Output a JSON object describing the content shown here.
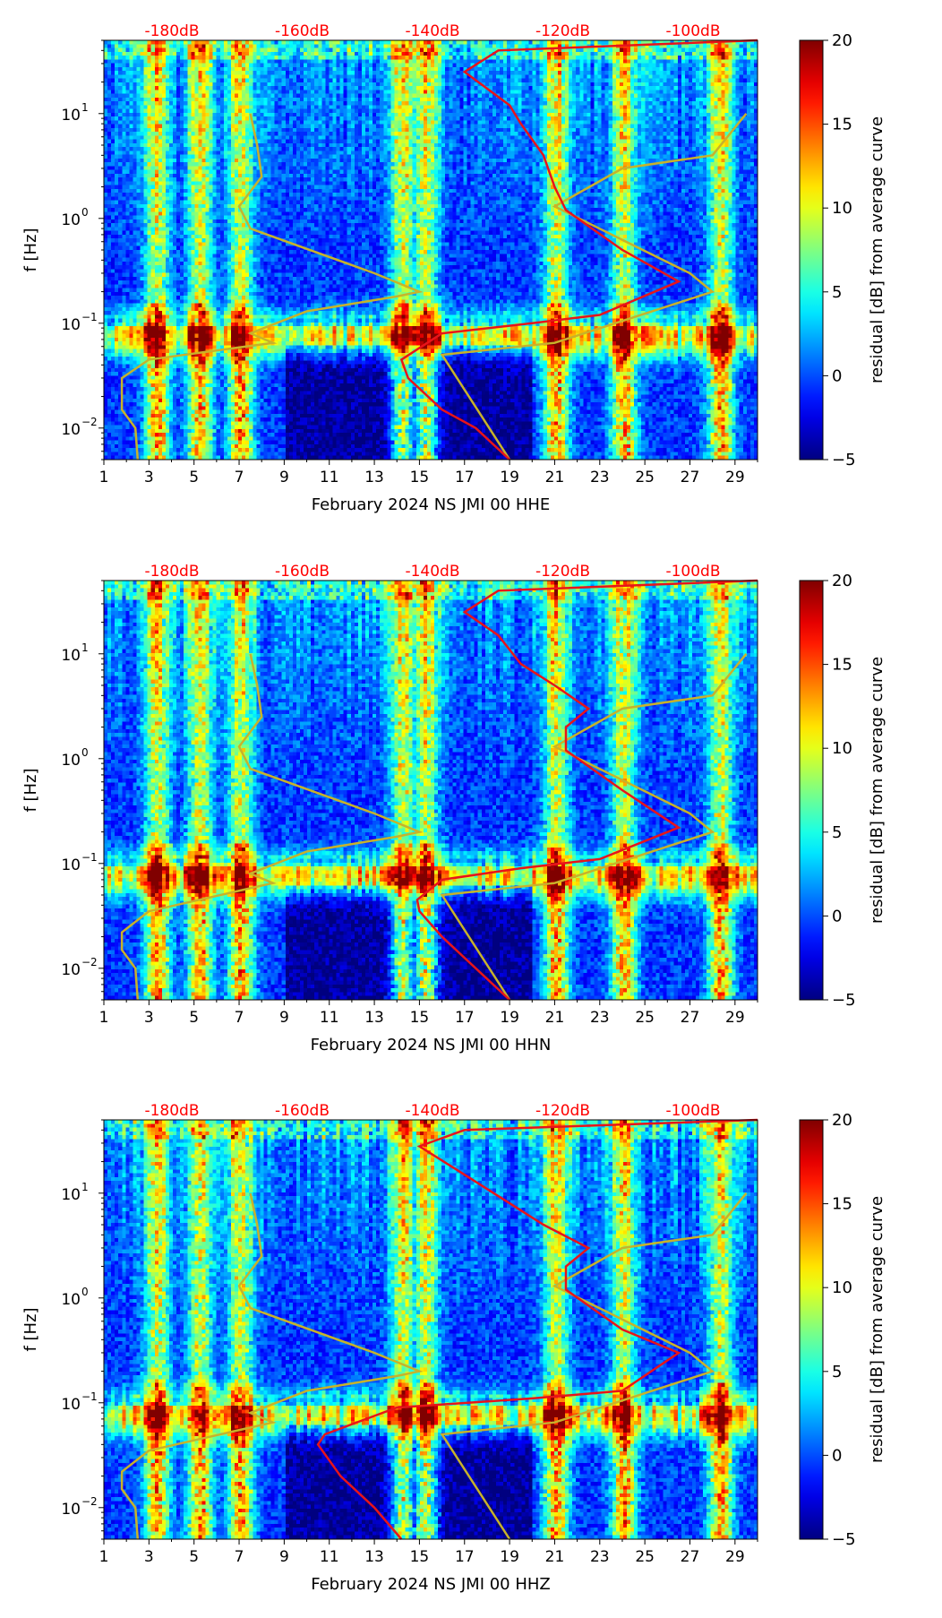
{
  "chart_data": [
    {
      "type": "heatmap",
      "title": "",
      "xlabel": "February 2024 NS JMI 00 HHE",
      "ylabel": "f [Hz]",
      "x_ticks": [
        "1",
        "3",
        "5",
        "7",
        "9",
        "11",
        "13",
        "15",
        "17",
        "19",
        "21",
        "23",
        "25",
        "27",
        "29"
      ],
      "x_range": [
        1,
        30
      ],
      "y_ticks": [
        {
          "exp": "1",
          "base": "10"
        },
        {
          "exp": "0",
          "base": "10"
        },
        {
          "exp": "−1",
          "base": "10"
        },
        {
          "exp": "−2",
          "base": "10"
        }
      ],
      "y_range_hz": [
        0.005,
        50
      ],
      "db_top_labels": [
        "-180dB",
        "-160dB",
        "-140dB",
        "-120dB",
        "-100dB"
      ],
      "colorbar": {
        "label": "residual [dB] from average curve",
        "ticks": [
          "20",
          "15",
          "10",
          "5",
          "0",
          "−5"
        ],
        "range": [
          -5,
          20
        ],
        "colormap": "jet"
      },
      "red_curve": [
        [
          19,
          0.005
        ],
        [
          17.5,
          0.01
        ],
        [
          16,
          0.015
        ],
        [
          14.5,
          0.03
        ],
        [
          14.2,
          0.045
        ],
        [
          16,
          0.08
        ],
        [
          20,
          0.1
        ],
        [
          23,
          0.12
        ],
        [
          26.5,
          0.25
        ],
        [
          24,
          0.5
        ],
        [
          21.5,
          1.2
        ],
        [
          21,
          2
        ],
        [
          20.5,
          4
        ],
        [
          19.5,
          8
        ],
        [
          19,
          12
        ],
        [
          17,
          25
        ],
        [
          18.5,
          40
        ],
        [
          30,
          50
        ]
      ],
      "gold_curve": [
        [
          2.5,
          0.005
        ],
        [
          2.4,
          0.01
        ],
        [
          1.8,
          0.015
        ],
        [
          1.8,
          0.03
        ],
        [
          3,
          0.045
        ],
        [
          8.5,
          0.065
        ],
        [
          7.5,
          0.08
        ],
        [
          10,
          0.13
        ],
        [
          14,
          0.18
        ],
        [
          15,
          0.2
        ],
        [
          13,
          0.3
        ],
        [
          7.5,
          0.8
        ],
        [
          7,
          1.3
        ],
        [
          8,
          2.5
        ],
        [
          7.8,
          5
        ],
        [
          7.5,
          10
        ]
      ],
      "gold_curve_right": [
        [
          19,
          0.005
        ],
        [
          16,
          0.05
        ],
        [
          21,
          0.065
        ],
        [
          28,
          0.2
        ],
        [
          27,
          0.3
        ],
        [
          21,
          1.3
        ],
        [
          24,
          3
        ],
        [
          28,
          4
        ],
        [
          29.5,
          10
        ]
      ]
    },
    {
      "type": "heatmap",
      "title": "",
      "xlabel": "February 2024 NS JMI 00 HHN",
      "ylabel": "f [Hz]",
      "x_ticks": [
        "1",
        "3",
        "5",
        "7",
        "9",
        "11",
        "13",
        "15",
        "17",
        "19",
        "21",
        "23",
        "25",
        "27",
        "29"
      ],
      "x_range": [
        1,
        30
      ],
      "y_ticks": [
        {
          "exp": "1",
          "base": "10"
        },
        {
          "exp": "0",
          "base": "10"
        },
        {
          "exp": "−1",
          "base": "10"
        },
        {
          "exp": "−2",
          "base": "10"
        }
      ],
      "y_range_hz": [
        0.005,
        50
      ],
      "db_top_labels": [
        "-180dB",
        "-160dB",
        "-140dB",
        "-120dB",
        "-100dB"
      ],
      "colorbar": {
        "label": "residual [dB] from average curve",
        "ticks": [
          "20",
          "15",
          "10",
          "5",
          "0",
          "−5"
        ],
        "range": [
          -5,
          20
        ],
        "colormap": "jet"
      },
      "red_curve": [
        [
          19,
          0.005
        ],
        [
          17.5,
          0.01
        ],
        [
          16,
          0.02
        ],
        [
          15,
          0.035
        ],
        [
          14.9,
          0.045
        ],
        [
          16,
          0.07
        ],
        [
          19.5,
          0.09
        ],
        [
          23,
          0.11
        ],
        [
          26.5,
          0.22
        ],
        [
          24,
          0.5
        ],
        [
          21.5,
          1.2
        ],
        [
          21.5,
          2
        ],
        [
          22.5,
          3
        ],
        [
          21,
          5
        ],
        [
          19.5,
          8
        ],
        [
          18.5,
          15
        ],
        [
          17,
          25
        ],
        [
          18.5,
          40
        ],
        [
          30,
          50
        ]
      ],
      "gold_curve": [
        [
          2.5,
          0.005
        ],
        [
          2.4,
          0.01
        ],
        [
          1.8,
          0.015
        ],
        [
          1.8,
          0.022
        ],
        [
          3,
          0.035
        ],
        [
          8.5,
          0.065
        ],
        [
          7.5,
          0.08
        ],
        [
          10,
          0.13
        ],
        [
          14,
          0.18
        ],
        [
          15,
          0.2
        ],
        [
          13,
          0.3
        ],
        [
          7.5,
          0.8
        ],
        [
          7,
          1.3
        ],
        [
          8,
          2.5
        ],
        [
          7.8,
          5
        ],
        [
          7.5,
          10
        ]
      ],
      "gold_curve_right": [
        [
          19,
          0.005
        ],
        [
          16,
          0.05
        ],
        [
          21,
          0.065
        ],
        [
          28,
          0.2
        ],
        [
          27,
          0.3
        ],
        [
          21,
          1.3
        ],
        [
          24,
          3
        ],
        [
          28,
          4
        ],
        [
          29.5,
          10
        ]
      ]
    },
    {
      "type": "heatmap",
      "title": "",
      "xlabel": "February 2024 NS JMI 00 HHZ",
      "ylabel": "f [Hz]",
      "x_ticks": [
        "1",
        "3",
        "5",
        "7",
        "9",
        "11",
        "13",
        "15",
        "17",
        "19",
        "21",
        "23",
        "25",
        "27",
        "29"
      ],
      "x_range": [
        1,
        30
      ],
      "y_ticks": [
        {
          "exp": "1",
          "base": "10"
        },
        {
          "exp": "0",
          "base": "10"
        },
        {
          "exp": "−1",
          "base": "10"
        },
        {
          "exp": "−2",
          "base": "10"
        }
      ],
      "y_range_hz": [
        0.005,
        50
      ],
      "db_top_labels": [
        "-180dB",
        "-160dB",
        "-140dB",
        "-120dB",
        "-100dB"
      ],
      "colorbar": {
        "label": "residual [dB] from average curve",
        "ticks": [
          "20",
          "15",
          "10",
          "5",
          "0",
          "−5"
        ],
        "range": [
          -5,
          20
        ],
        "colormap": "jet"
      },
      "red_curve": [
        [
          14.2,
          0.005
        ],
        [
          13,
          0.01
        ],
        [
          11.5,
          0.02
        ],
        [
          10.5,
          0.04
        ],
        [
          10.8,
          0.05
        ],
        [
          14,
          0.09
        ],
        [
          20,
          0.11
        ],
        [
          24,
          0.13
        ],
        [
          26.5,
          0.3
        ],
        [
          24,
          0.5
        ],
        [
          21.5,
          1.2
        ],
        [
          21.5,
          2
        ],
        [
          22.5,
          3
        ],
        [
          20.5,
          5
        ],
        [
          19,
          8
        ],
        [
          17,
          15
        ],
        [
          15,
          28
        ],
        [
          17,
          40
        ],
        [
          30,
          50
        ]
      ],
      "gold_curve": [
        [
          2.5,
          0.005
        ],
        [
          2.4,
          0.01
        ],
        [
          1.8,
          0.015
        ],
        [
          1.8,
          0.022
        ],
        [
          3,
          0.035
        ],
        [
          8.5,
          0.065
        ],
        [
          7.5,
          0.08
        ],
        [
          10,
          0.13
        ],
        [
          14,
          0.18
        ],
        [
          15,
          0.2
        ],
        [
          13,
          0.3
        ],
        [
          7.5,
          0.8
        ],
        [
          7,
          1.3
        ],
        [
          8,
          2.5
        ],
        [
          7.8,
          5
        ],
        [
          7.5,
          10
        ]
      ],
      "gold_curve_right": [
        [
          19,
          0.005
        ],
        [
          16,
          0.05
        ],
        [
          21,
          0.065
        ],
        [
          28,
          0.2
        ],
        [
          27,
          0.3
        ],
        [
          21,
          1.3
        ],
        [
          24,
          3
        ],
        [
          28,
          4
        ],
        [
          29.5,
          10
        ]
      ]
    }
  ]
}
